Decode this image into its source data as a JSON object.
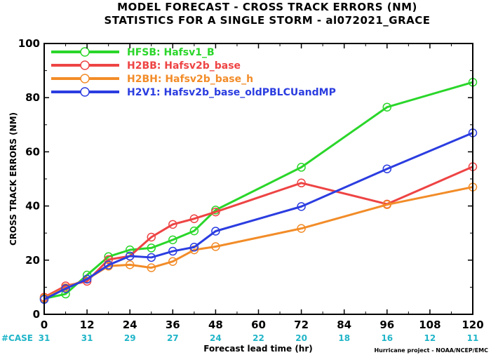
{
  "chart_data": {
    "type": "line",
    "title": "MODEL FORECAST - CROSS TRACK ERRORS (NM)",
    "subtitle": "STATISTICS FOR A SINGLE STORM - al072021_GRACE",
    "xlabel": "Forecast lead time (hr)",
    "ylabel": "CROSS TRACK ERRORS (NM)",
    "xlim": [
      0,
      120
    ],
    "ylim": [
      0,
      100
    ],
    "xticks": [
      0,
      12,
      24,
      36,
      48,
      60,
      72,
      84,
      96,
      108,
      120
    ],
    "yticks": [
      0,
      20,
      40,
      60,
      80,
      100
    ],
    "grid": false,
    "legend_position": "top-left",
    "case_label": "#CASE",
    "case_counts": [
      {
        "x": 0,
        "n": "31"
      },
      {
        "x": 12,
        "n": "31"
      },
      {
        "x": 24,
        "n": "29"
      },
      {
        "x": 36,
        "n": "27"
      },
      {
        "x": 48,
        "n": "24"
      },
      {
        "x": 60,
        "n": "22"
      },
      {
        "x": 72,
        "n": "20"
      },
      {
        "x": 84,
        "n": "18"
      },
      {
        "x": 96,
        "n": "16"
      },
      {
        "x": 108,
        "n": "12"
      },
      {
        "x": 120,
        "n": "11"
      }
    ],
    "credit": "Hurricane project - NOAA/NCEP/EMC",
    "series": [
      {
        "name": "HFSB: Hafsv1_B",
        "color": "#2ad62a",
        "x": [
          0,
          6,
          12,
          18,
          24,
          30,
          36,
          42,
          48,
          72,
          96,
          120
        ],
        "y": [
          5.8,
          7.5,
          14.5,
          21.3,
          23.8,
          24.5,
          27.5,
          30.8,
          38.5,
          54.3,
          76.5,
          85.7
        ]
      },
      {
        "name": "H2BB: Hafsv2b_base",
        "color": "#ee4444",
        "x": [
          0,
          6,
          12,
          18,
          24,
          30,
          36,
          42,
          48,
          72,
          96,
          120
        ],
        "y": [
          6.3,
          10.5,
          12.2,
          20.2,
          21.5,
          28.5,
          33.2,
          35.3,
          37.8,
          48.5,
          40.7,
          54.5
        ]
      },
      {
        "name": "H2BH: Hafsv2b_base_h",
        "color": "#f28c28",
        "x": [
          0,
          6,
          12,
          18,
          24,
          30,
          36,
          42,
          48,
          72,
          96,
          120
        ],
        "y": [
          6.0,
          9.8,
          13.0,
          17.8,
          18.3,
          17.2,
          19.5,
          23.8,
          25.0,
          31.7,
          40.5,
          47.0
        ]
      },
      {
        "name": "H2V1: Hafsv2b_base_oldPBLCUandMP",
        "color": "#2b3de0",
        "x": [
          0,
          6,
          12,
          18,
          24,
          30,
          36,
          42,
          48,
          72,
          96,
          120
        ],
        "y": [
          5.5,
          9.5,
          13.0,
          18.2,
          21.5,
          21.0,
          23.3,
          24.8,
          30.7,
          39.8,
          53.7,
          67.0
        ]
      }
    ]
  }
}
